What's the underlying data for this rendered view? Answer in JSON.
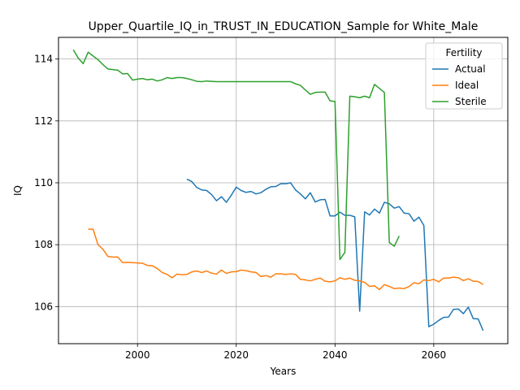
{
  "chart_data": {
    "type": "line",
    "title": "Upper_Quartile_IQ_in_TRUST_IN_EDUCATION_Sample for White_Male",
    "xlabel": "Years",
    "ylabel": "IQ",
    "xlim": [
      1984,
      2075
    ],
    "ylim": [
      104.8,
      114.7
    ],
    "xticks": [
      2000,
      2020,
      2040,
      2060
    ],
    "yticks": [
      106,
      108,
      110,
      112,
      114
    ],
    "grid": true,
    "legend": {
      "title": "Fertility",
      "placement": "top-right"
    },
    "series": [
      {
        "name": "Actual",
        "color": "#1f77b4",
        "x": [
          2010,
          2011,
          2012,
          2013,
          2014,
          2015,
          2016,
          2017,
          2018,
          2019,
          2020,
          2021,
          2022,
          2023,
          2024,
          2025,
          2026,
          2027,
          2028,
          2029,
          2030,
          2031,
          2032,
          2033,
          2034,
          2035,
          2036,
          2037,
          2038,
          2039,
          2040,
          2041,
          2042,
          2043,
          2044,
          2045,
          2046,
          2047,
          2048,
          2049,
          2050,
          2051,
          2052,
          2053,
          2054,
          2055,
          2056,
          2057,
          2058,
          2059,
          2060,
          2061,
          2062,
          2063,
          2064,
          2065,
          2066,
          2067,
          2068,
          2069,
          2070
        ],
        "values": [
          110.12,
          110.04,
          109.85,
          109.77,
          109.75,
          109.62,
          109.42,
          109.55,
          109.37,
          109.6,
          109.86,
          109.75,
          109.69,
          109.72,
          109.64,
          109.68,
          109.79,
          109.87,
          109.88,
          109.97,
          109.97,
          110.0,
          109.77,
          109.64,
          109.48,
          109.68,
          109.38,
          109.45,
          109.46,
          108.93,
          108.93,
          109.05,
          108.95,
          108.95,
          108.9,
          105.85,
          109.06,
          108.96,
          109.15,
          109.02,
          109.37,
          109.32,
          109.18,
          109.23,
          109.02,
          109.0,
          108.76,
          108.89,
          108.62,
          105.35,
          105.43,
          105.55,
          105.65,
          105.66,
          105.91,
          105.92,
          105.77,
          105.98,
          105.61,
          105.6,
          105.22
        ]
      },
      {
        "name": "Ideal",
        "color": "#ff7f0e",
        "x": [
          1990,
          1991,
          1992,
          1993,
          1994,
          1995,
          1996,
          1997,
          1998,
          1999,
          2000,
          2001,
          2002,
          2003,
          2004,
          2005,
          2006,
          2007,
          2008,
          2009,
          2010,
          2011,
          2012,
          2013,
          2014,
          2015,
          2016,
          2017,
          2018,
          2019,
          2020,
          2021,
          2022,
          2023,
          2024,
          2025,
          2026,
          2027,
          2028,
          2029,
          2030,
          2031,
          2032,
          2033,
          2034,
          2035,
          2036,
          2037,
          2038,
          2039,
          2040,
          2041,
          2042,
          2043,
          2044,
          2045,
          2046,
          2047,
          2048,
          2049,
          2050,
          2051,
          2052,
          2053,
          2054,
          2055,
          2056,
          2057,
          2058,
          2059,
          2060,
          2061,
          2062,
          2063,
          2064,
          2065,
          2066,
          2067,
          2068,
          2069,
          2070
        ],
        "values": [
          108.5,
          108.5,
          108.0,
          107.85,
          107.62,
          107.6,
          107.6,
          107.42,
          107.43,
          107.42,
          107.41,
          107.4,
          107.33,
          107.32,
          107.23,
          107.1,
          107.04,
          106.93,
          107.05,
          107.03,
          107.04,
          107.12,
          107.15,
          107.1,
          107.15,
          107.08,
          107.05,
          107.18,
          107.07,
          107.12,
          107.13,
          107.18,
          107.16,
          107.12,
          107.1,
          106.97,
          107.0,
          106.95,
          107.06,
          107.06,
          107.04,
          107.06,
          107.04,
          106.88,
          106.86,
          106.83,
          106.88,
          106.92,
          106.82,
          106.8,
          106.83,
          106.93,
          106.88,
          106.92,
          106.85,
          106.83,
          106.78,
          106.65,
          106.67,
          106.55,
          106.71,
          106.65,
          106.58,
          106.6,
          106.58,
          106.65,
          106.77,
          106.74,
          106.86,
          106.84,
          106.88,
          106.8,
          106.92,
          106.92,
          106.95,
          106.93,
          106.84,
          106.9,
          106.82,
          106.81,
          106.71
        ]
      },
      {
        "name": "Sterile",
        "color": "#2ca02c",
        "x": [
          1987,
          1988,
          1989,
          1990,
          1991,
          1992,
          1993,
          1994,
          1995,
          1996,
          1997,
          1998,
          1999,
          2000,
          2001,
          2002,
          2003,
          2004,
          2005,
          2006,
          2007,
          2008,
          2009,
          2010,
          2011,
          2012,
          2013,
          2014,
          2015,
          2016,
          2017,
          2018,
          2019,
          2020,
          2021,
          2022,
          2023,
          2024,
          2025,
          2026,
          2027,
          2028,
          2029,
          2030,
          2031,
          2032,
          2033,
          2034,
          2035,
          2036,
          2037,
          2038,
          2039,
          2040,
          2041,
          2042,
          2043,
          2044,
          2045,
          2046,
          2047,
          2048,
          2049,
          2050,
          2051,
          2052,
          2053
        ],
        "values": [
          114.3,
          114.03,
          113.85,
          114.22,
          114.1,
          113.98,
          113.82,
          113.68,
          113.66,
          113.64,
          113.52,
          113.53,
          113.32,
          113.35,
          113.37,
          113.33,
          113.35,
          113.29,
          113.33,
          113.4,
          113.37,
          113.4,
          113.4,
          113.37,
          113.33,
          113.28,
          113.27,
          113.29,
          113.28,
          113.27,
          113.27,
          113.27,
          113.27,
          113.27,
          113.27,
          113.27,
          113.27,
          113.27,
          113.27,
          113.27,
          113.27,
          113.27,
          113.27,
          113.27,
          113.27,
          113.2,
          113.15,
          113.0,
          112.86,
          112.92,
          112.93,
          112.93,
          112.65,
          112.63,
          107.52,
          107.75,
          112.8,
          112.78,
          112.75,
          112.8,
          112.75,
          113.18,
          113.05,
          112.92,
          108.07,
          107.95,
          108.28
        ]
      }
    ]
  }
}
